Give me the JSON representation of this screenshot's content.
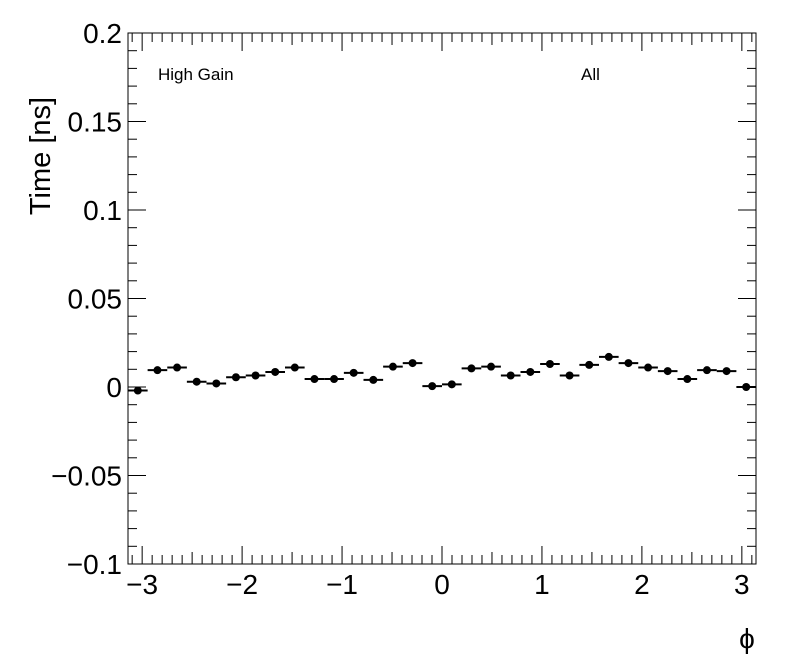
{
  "chart_data": {
    "type": "scatter",
    "title": "",
    "xlabel": "ϕ",
    "ylabel": "Time [ns]",
    "xlim": [
      -3.1416,
      3.1416
    ],
    "ylim": [
      -0.1,
      0.2
    ],
    "xticks": [
      -3,
      -2,
      -1,
      0,
      1,
      2,
      3
    ],
    "xtick_labels": [
      "−3",
      "−2",
      "−1",
      "0",
      "1",
      "2",
      "3"
    ],
    "yticks": [
      -0.1,
      -0.05,
      0,
      0.05,
      0.1,
      0.15,
      0.2
    ],
    "ytick_labels": [
      "−0.1",
      "−0.05",
      "0",
      "0.05",
      "0.1",
      "0.15",
      "0.2"
    ],
    "annotations": [
      "High Gain",
      "All"
    ],
    "grid": false,
    "marker_color": "#000000",
    "bin_width": 0.19635,
    "x": [
      -3.0434,
      -2.8471,
      -2.6507,
      -2.4544,
      -2.258,
      -2.0617,
      -1.8653,
      -1.669,
      -1.4726,
      -1.2763,
      -1.0799,
      -0.8836,
      -0.6872,
      -0.4909,
      -0.2945,
      -0.0982,
      0.0982,
      0.2945,
      0.4909,
      0.6872,
      0.8836,
      1.0799,
      1.2763,
      1.4726,
      1.669,
      1.8653,
      2.0617,
      2.258,
      2.4544,
      2.6507,
      2.8471,
      3.0434
    ],
    "y": [
      -0.002,
      0.0095,
      0.011,
      0.003,
      0.002,
      0.0055,
      0.0065,
      0.0085,
      0.011,
      0.0045,
      0.0045,
      0.008,
      0.004,
      0.0115,
      0.0135,
      0.0005,
      0.0015,
      0.0105,
      0.0115,
      0.0065,
      0.0085,
      0.013,
      0.0065,
      0.0125,
      0.017,
      0.0135,
      0.011,
      0.009,
      0.0045,
      0.0095,
      0.009,
      0.0
    ]
  }
}
